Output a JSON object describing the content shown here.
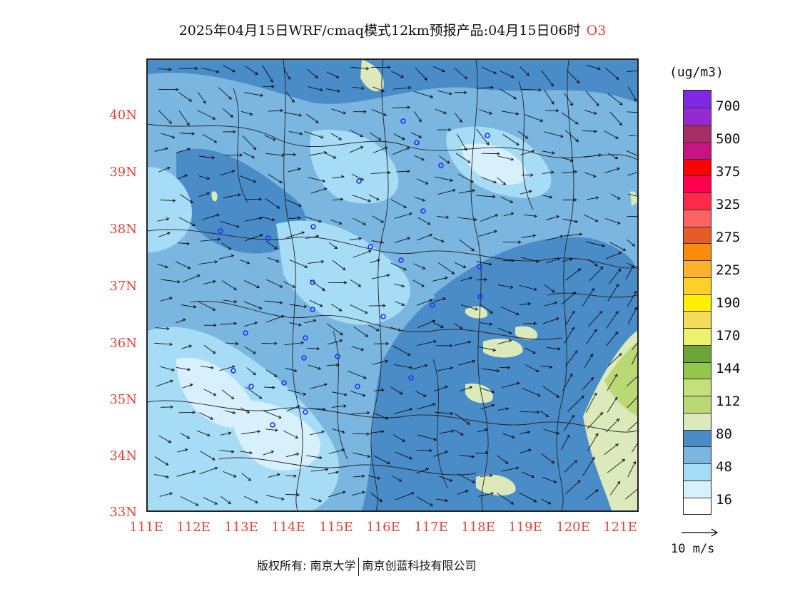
{
  "header": {
    "title": "2025年04月15日WRF/cmaq模式12km预报产品:04月15日06时",
    "species": "O3"
  },
  "colors": {
    "axis_label": "#e0443c",
    "station_marker": "#1a33ff",
    "wind_arrow": "#000000",
    "boundary": "#222222"
  },
  "map": {
    "lat_labels": [
      "40N",
      "39N",
      "38N",
      "37N",
      "36N",
      "35N",
      "34N",
      "33N"
    ],
    "lon_labels": [
      "111E",
      "112E",
      "113E",
      "114E",
      "115E",
      "116E",
      "117E",
      "118E",
      "119E",
      "120E",
      "121E"
    ],
    "lat_range": [
      33,
      41
    ],
    "lon_range": [
      111,
      121.4
    ]
  },
  "legend": {
    "unit": "(ug/m3)",
    "colors": [
      "#ffffff",
      "#d8f0fc",
      "#a6dcf5",
      "#7ab6df",
      "#4a8cc8",
      "#dceabb",
      "#bcd874",
      "#c3e07a",
      "#93c84a",
      "#6ca63a",
      "#eef26a",
      "#f4dc5a",
      "#fff000",
      "#ffd028",
      "#fbb12e",
      "#fb8b0a",
      "#e85a28",
      "#fa6464",
      "#fe2a4a",
      "#ff0050",
      "#ff0000",
      "#c81482",
      "#a62e64",
      "#962ad2",
      "#7e28e4"
    ],
    "labels": [
      "16",
      "48",
      "80",
      "112",
      "144",
      "170",
      "190",
      "225",
      "275",
      "325",
      "375",
      "500",
      "700"
    ],
    "wind_ref": "10 m/s"
  },
  "footer": {
    "copyright": "版权所有: 南京大学",
    "company": "南京创蓝科技有限公司"
  }
}
